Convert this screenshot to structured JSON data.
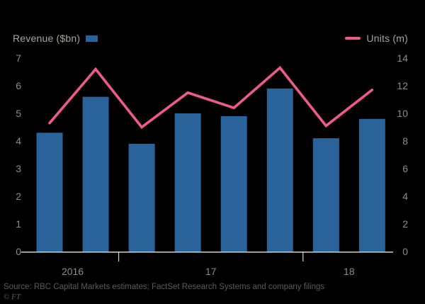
{
  "footer": {
    "source": "Source: RBC Capital Markets estimates; FactSet Research Systems and company filings",
    "copyright": "© FT"
  },
  "chart_data": {
    "type": "bar",
    "subtype": "bar+line dual-axis combo",
    "title": "",
    "series": [
      {
        "name": "Revenue ($bn)",
        "type": "bar",
        "axis": "left",
        "color": "#2a629a",
        "values": [
          4.3,
          5.6,
          3.9,
          5.0,
          4.9,
          5.9,
          4.1,
          4.8
        ]
      },
      {
        "name": "Units (m)",
        "type": "line",
        "axis": "right",
        "color": "#ef5a8b",
        "values": [
          9.3,
          13.2,
          9.0,
          11.5,
          10.4,
          13.3,
          9.1,
          11.7
        ]
      }
    ],
    "x_groups": [
      {
        "label": "2016",
        "bars": 2
      },
      {
        "label": "17",
        "bars": 4
      },
      {
        "label": "18",
        "bars": 2
      }
    ],
    "axes": {
      "left": {
        "label": "Revenue ($bn)",
        "min": 0,
        "max": 7,
        "ticks": [
          0,
          1,
          2,
          3,
          4,
          5,
          6,
          7
        ]
      },
      "right": {
        "label": "Units (m)",
        "min": 0,
        "max": 14,
        "ticks": [
          0,
          2,
          4,
          6,
          8,
          10,
          12,
          14
        ]
      }
    },
    "grid": false,
    "legend_position": "top",
    "background": "#000000",
    "axis_text_color": "#8f8a84",
    "baseline_color": "#d9d0c7"
  }
}
